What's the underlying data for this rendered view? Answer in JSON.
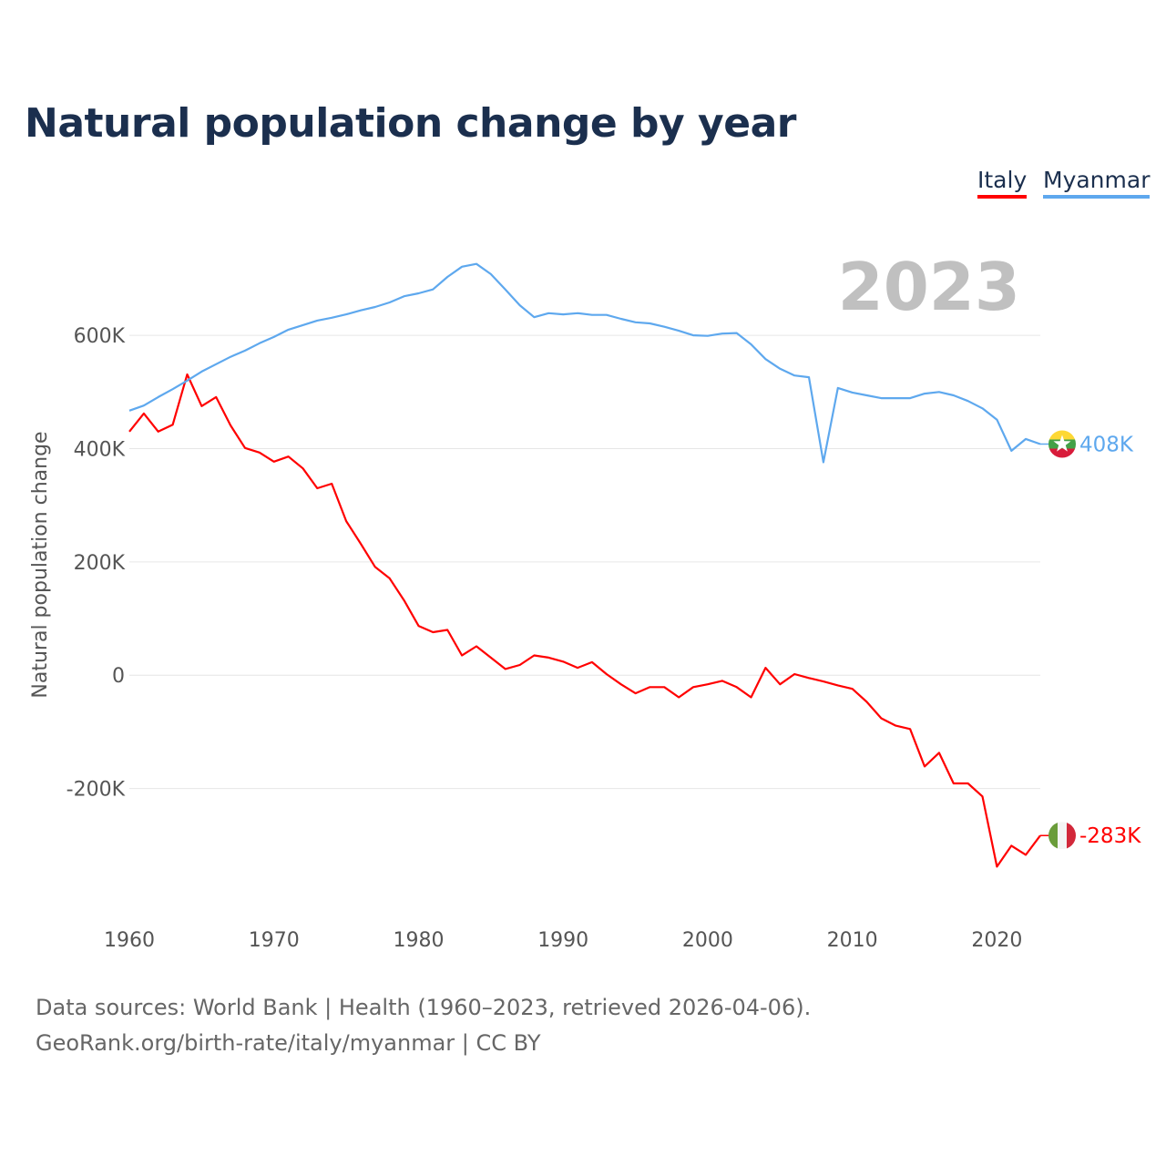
{
  "chart_data": {
    "type": "line",
    "title": "Natural population change by year",
    "ylabel": "Natural population change",
    "xlabel": "",
    "xlim": [
      1960,
      2023
    ],
    "ylim": [
      -400000,
      740000
    ],
    "grid": true,
    "legend_position": "top-right",
    "current_year_label": "2023",
    "x_ticks": [
      "1960",
      "1970",
      "1980",
      "1990",
      "2000",
      "2010",
      "2020"
    ],
    "y_ticks": [
      {
        "v": 600000,
        "label": "600K"
      },
      {
        "v": 400000,
        "label": "400K"
      },
      {
        "v": 200000,
        "label": "200K"
      },
      {
        "v": 0,
        "label": "0"
      },
      {
        "v": -200000,
        "label": "-200K"
      }
    ],
    "x_start": 1960,
    "series": [
      {
        "name": "Italy",
        "color": "#ff0000",
        "end_label": "-283K",
        "flag": "italy-flag",
        "values": [
          430000,
          462000,
          430000,
          442000,
          531000,
          475000,
          491000,
          441000,
          401000,
          393000,
          377000,
          386000,
          365000,
          330000,
          338000,
          272000,
          232000,
          191000,
          171000,
          132000,
          87000,
          76000,
          80000,
          35000,
          51000,
          31000,
          11000,
          18000,
          35000,
          31000,
          24000,
          13000,
          23000,
          2000,
          -16000,
          -32000,
          -21000,
          -21000,
          -39000,
          -21000,
          -16000,
          -10000,
          -21000,
          -39000,
          13000,
          -16000,
          2000,
          -5000,
          -11000,
          -18000,
          -24000,
          -47000,
          -76000,
          -89000,
          -95000,
          -161000,
          -137000,
          -191000,
          -191000,
          -214000,
          -338000,
          -301000,
          -317000,
          -283000
        ]
      },
      {
        "name": "Myanmar",
        "color": "#5ea8ee",
        "end_label": "408K",
        "flag": "myanmar-flag",
        "values": [
          467000,
          476000,
          491000,
          505000,
          520000,
          536000,
          549000,
          562000,
          573000,
          586000,
          597000,
          610000,
          618000,
          626000,
          631000,
          637000,
          644000,
          650000,
          658000,
          669000,
          674000,
          681000,
          703000,
          721000,
          726000,
          708000,
          681000,
          653000,
          632000,
          639000,
          637000,
          639000,
          636000,
          636000,
          629000,
          623000,
          621000,
          615000,
          608000,
          600000,
          599000,
          603000,
          604000,
          584000,
          558000,
          541000,
          529000,
          526000,
          376000,
          507000,
          499000,
          494000,
          489000,
          489000,
          489000,
          497000,
          500000,
          494000,
          484000,
          471000,
          451000,
          396000,
          417000,
          408000
        ]
      }
    ]
  },
  "source": {
    "line1": "Data sources: World Bank | Health (1960–2023, retrieved 2026-04-06).",
    "line2": "GeoRank.org/birth-rate/italy/myanmar | CC BY"
  }
}
